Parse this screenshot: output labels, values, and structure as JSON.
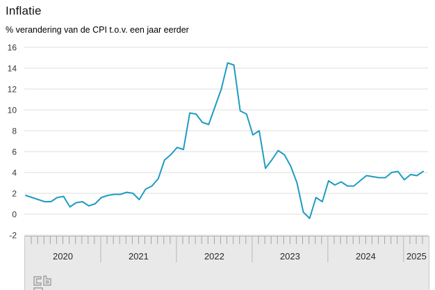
{
  "header": {
    "title": "Inflatie",
    "subtitle": "% verandering van de CPI t.o.v. een jaar eerder"
  },
  "logo": {
    "alt": "CBS"
  },
  "colors": {
    "line": "#1d9cc2",
    "gridline": "#dcdcdc",
    "axis_text": "#333333",
    "band_fill": "#e9e9e9",
    "band_border": "#b0b0b0",
    "band_side_border": "#c9c9c9",
    "tick": "#a3a3a3",
    "year_divider": "#b8b8b8",
    "year_text": "#2a2a2a",
    "logo_stroke": "#9e9e9e"
  },
  "chart_data": {
    "type": "line",
    "title": "Inflatie",
    "subtitle": "% verandering van de CPI t.o.v. een jaar eerder",
    "ylabel": "%",
    "ylim": [
      -2,
      16
    ],
    "yticks": [
      16,
      14,
      12,
      10,
      8,
      6,
      4,
      2,
      0,
      -2
    ],
    "grid": true,
    "legend": false,
    "x_unit": "month",
    "x_start": "2020-01",
    "x_end": "2025-04",
    "year_labels": [
      "2020",
      "2021",
      "2022",
      "2023",
      "2024",
      "2025"
    ],
    "series": [
      {
        "name": "Inflatie (% verandering CPI t.o.v. een jaar eerder)",
        "color": "#1d9cc2",
        "values": [
          1.8,
          1.6,
          1.4,
          1.2,
          1.2,
          1.6,
          1.7,
          0.7,
          1.1,
          1.2,
          0.8,
          1.0,
          1.6,
          1.8,
          1.9,
          1.9,
          2.1,
          2.0,
          1.4,
          2.4,
          2.7,
          3.4,
          5.2,
          5.7,
          6.4,
          6.2,
          9.7,
          9.6,
          8.8,
          8.6,
          10.3,
          12.0,
          14.5,
          14.3,
          9.9,
          9.6,
          7.6,
          8.0,
          4.4,
          5.2,
          6.1,
          5.7,
          4.6,
          3.0,
          0.2,
          -0.4,
          1.6,
          1.2,
          3.2,
          2.8,
          3.1,
          2.7,
          2.7,
          3.2,
          3.7,
          3.6,
          3.5,
          3.5,
          4.0,
          4.1,
          3.3,
          3.8,
          3.7,
          4.1
        ]
      }
    ]
  }
}
